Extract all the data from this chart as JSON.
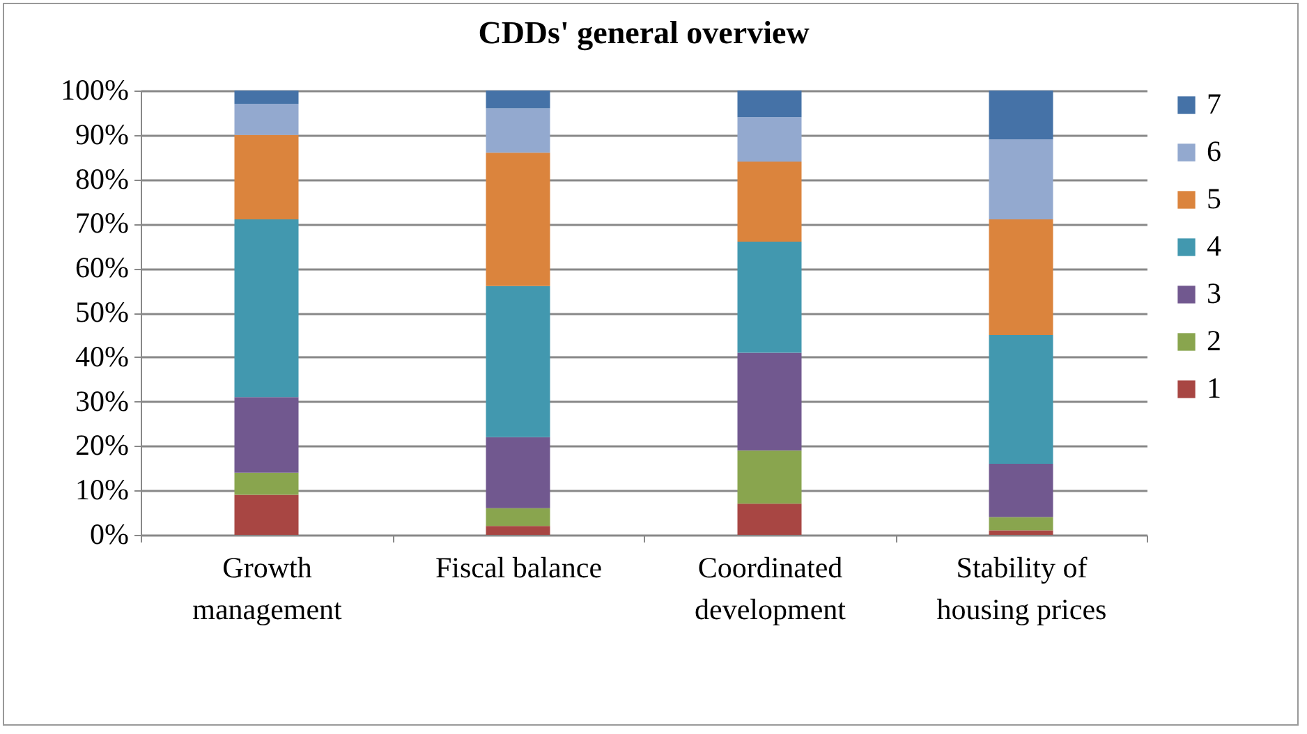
{
  "chart_data": {
    "type": "bar",
    "title": "CDDs' general overview",
    "stacked": true,
    "categories": [
      "Growth management",
      "Fiscal balance",
      "Coordinated development",
      "Stability of housing prices"
    ],
    "series": [
      {
        "name": "1",
        "color": "#a84643",
        "values": [
          9,
          2,
          7,
          1
        ]
      },
      {
        "name": "2",
        "color": "#89a54e",
        "values": [
          5,
          4,
          12,
          3
        ]
      },
      {
        "name": "3",
        "color": "#71588f",
        "values": [
          17,
          16,
          22,
          12
        ]
      },
      {
        "name": "4",
        "color": "#4298af",
        "values": [
          40,
          34,
          25,
          29
        ]
      },
      {
        "name": "5",
        "color": "#db843d",
        "values": [
          19,
          30,
          18,
          26
        ]
      },
      {
        "name": "6",
        "color": "#93a9cf",
        "values": [
          7,
          10,
          10,
          18
        ]
      },
      {
        "name": "7",
        "color": "#4572a7",
        "values": [
          3,
          4,
          6,
          11
        ]
      }
    ],
    "ylim": [
      0,
      100
    ],
    "yticks": [
      {
        "value": 0,
        "label": "0%"
      },
      {
        "value": 10,
        "label": "10%"
      },
      {
        "value": 20,
        "label": "20%"
      },
      {
        "value": 30,
        "label": "30%"
      },
      {
        "value": 40,
        "label": "40%"
      },
      {
        "value": 50,
        "label": "50%"
      },
      {
        "value": 60,
        "label": "60%"
      },
      {
        "value": 70,
        "label": "70%"
      },
      {
        "value": 80,
        "label": "80%"
      },
      {
        "value": 90,
        "label": "90%"
      },
      {
        "value": 100,
        "label": "100%"
      }
    ],
    "grid": "y",
    "legend": "right"
  }
}
